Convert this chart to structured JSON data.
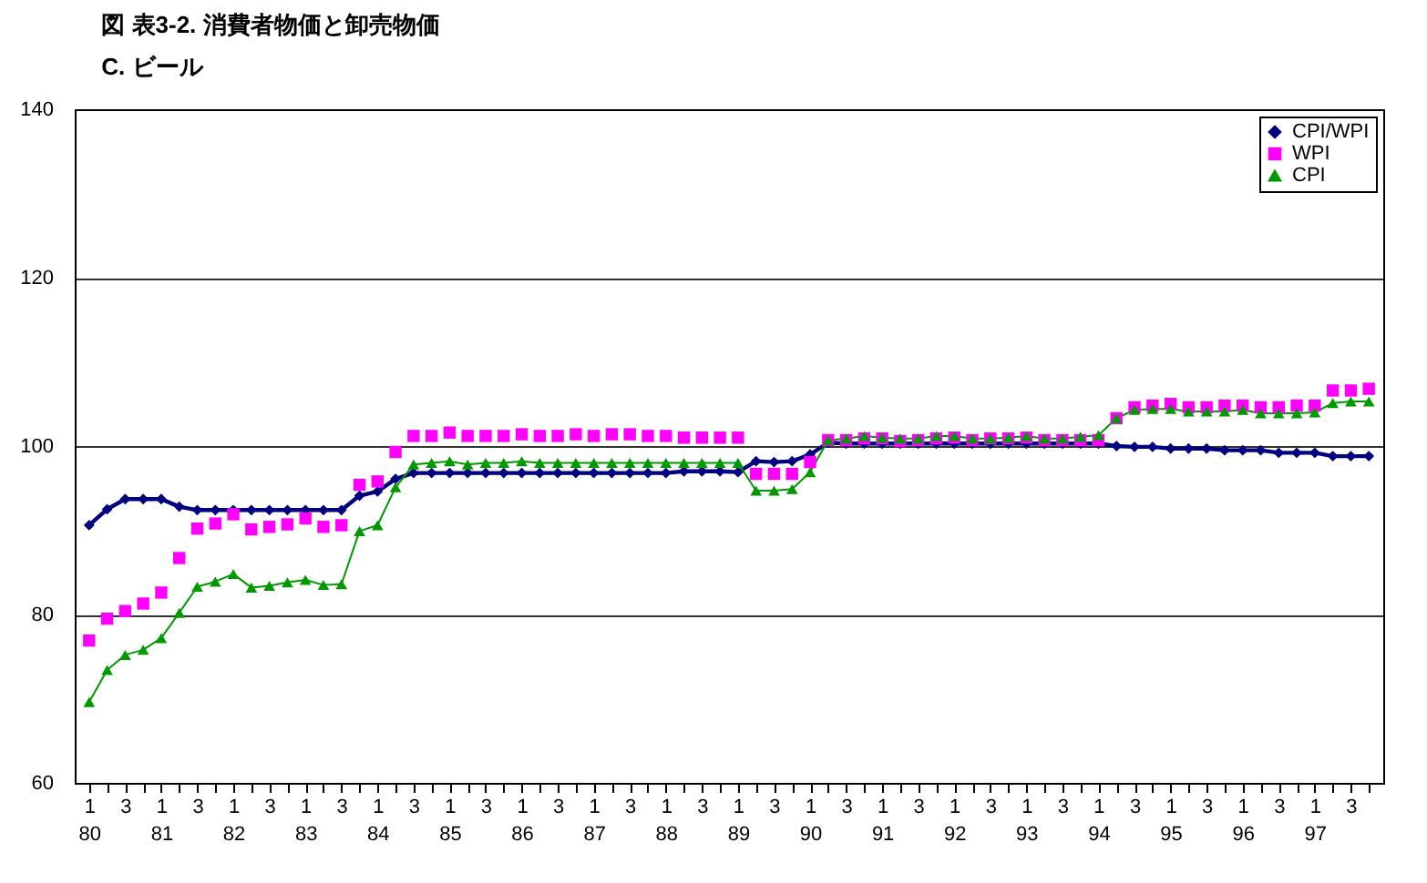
{
  "chart_data": {
    "type": "line",
    "title": "図 表3-2. 消費者物価と卸売物価",
    "subtitle": "C. ビール",
    "categories": [
      "1\n80",
      null,
      "3",
      null,
      "1\n81",
      null,
      "3",
      null,
      "1\n82",
      null,
      "3",
      null,
      "1\n83",
      null,
      "3",
      null,
      "1\n84",
      null,
      "3",
      null,
      "1\n85",
      null,
      "3",
      null,
      "1\n86",
      null,
      "3",
      null,
      "1\n87",
      null,
      "3",
      null,
      "1\n88",
      null,
      "3",
      null,
      "1\n89",
      null,
      "3",
      null,
      "1\n90",
      null,
      "3",
      null,
      "1\n91",
      null,
      "3",
      null,
      "1\n92",
      null,
      "3",
      null,
      "1\n93",
      null,
      "3",
      null,
      "1\n94",
      null,
      "3",
      null,
      "1\n95",
      null,
      "3",
      null,
      "1\n96",
      null,
      "3",
      null,
      "1\n97",
      null,
      "3",
      null
    ],
    "series": [
      {
        "name": "CPI/WPI",
        "color": "#000080",
        "marker": "diamond",
        "values": [
          90.6,
          92.5,
          93.7,
          93.7,
          93.7,
          92.8,
          92.4,
          92.4,
          92.4,
          92.4,
          92.4,
          92.4,
          92.4,
          92.4,
          92.4,
          94.1,
          94.6,
          96.1,
          96.8,
          96.8,
          96.8,
          96.8,
          96.8,
          96.8,
          96.8,
          96.8,
          96.8,
          96.8,
          96.8,
          96.8,
          96.8,
          96.8,
          96.8,
          97.0,
          97.0,
          97.0,
          96.9,
          98.2,
          98.1,
          98.2,
          99.0,
          100.4,
          100.3,
          100.3,
          100.3,
          100.3,
          100.3,
          100.3,
          100.3,
          100.3,
          100.3,
          100.3,
          100.3,
          100.3,
          100.3,
          100.3,
          100.3,
          100.0,
          99.9,
          99.9,
          99.7,
          99.7,
          99.7,
          99.5,
          99.5,
          99.5,
          99.2,
          99.2,
          99.2,
          98.8,
          98.8,
          98.8
        ]
      },
      {
        "name": "WPI",
        "type": "scatter",
        "color": "#ff00ff",
        "marker": "square",
        "values": [
          76.9,
          79.5,
          80.4,
          81.3,
          82.6,
          86.7,
          90.2,
          90.8,
          91.9,
          90.1,
          90.4,
          90.7,
          91.4,
          90.4,
          90.6,
          95.4,
          95.8,
          99.3,
          101.2,
          101.2,
          101.6,
          101.2,
          101.2,
          101.2,
          101.4,
          101.2,
          101.2,
          101.4,
          101.2,
          101.4,
          101.4,
          101.2,
          101.2,
          101.0,
          101.0,
          101.0,
          101.0,
          96.7,
          96.7,
          96.7,
          98.1,
          100.7,
          100.7,
          100.9,
          100.9,
          100.6,
          100.7,
          100.9,
          101.0,
          100.7,
          100.9,
          100.9,
          101.0,
          100.7,
          100.7,
          100.7,
          100.7,
          103.3,
          104.6,
          104.8,
          105.0,
          104.6,
          104.6,
          104.8,
          104.8,
          104.6,
          104.6,
          104.8,
          104.8,
          106.6,
          106.6,
          106.8
        ]
      },
      {
        "name": "CPI",
        "color": "#009900",
        "marker": "triangle",
        "values": [
          69.6,
          73.4,
          75.2,
          75.8,
          77.2,
          80.2,
          83.3,
          83.9,
          84.8,
          83.2,
          83.4,
          83.8,
          84.1,
          83.5,
          83.6,
          89.9,
          90.6,
          95.1,
          97.8,
          98.0,
          98.2,
          97.8,
          98.0,
          98.0,
          98.2,
          98.0,
          98.0,
          98.0,
          98.0,
          98.0,
          98.0,
          98.0,
          98.0,
          98.0,
          98.0,
          98.0,
          98.0,
          94.7,
          94.7,
          94.9,
          96.9,
          100.7,
          100.9,
          101.2,
          101.0,
          100.9,
          100.9,
          101.2,
          101.2,
          100.9,
          100.9,
          101.0,
          101.2,
          100.9,
          100.9,
          101.1,
          101.3,
          103.3,
          104.3,
          104.4,
          104.4,
          104.1,
          104.1,
          104.1,
          104.3,
          103.9,
          103.9,
          103.9,
          104.0,
          105.1,
          105.3,
          105.3
        ]
      }
    ],
    "ylim": [
      60,
      140
    ],
    "yticks": [
      60,
      80,
      100,
      120,
      140
    ],
    "grid": "y",
    "legend": "top right"
  }
}
